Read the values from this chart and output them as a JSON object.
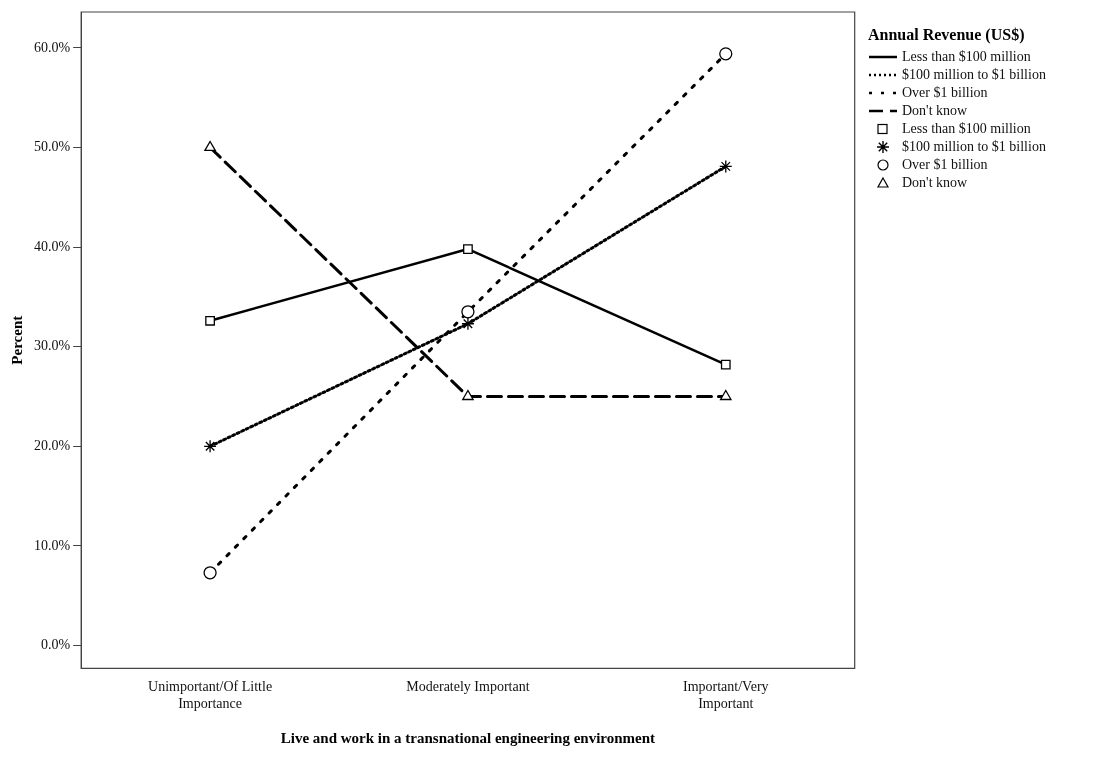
{
  "chart_data": {
    "type": "line",
    "xlabel": "Live and work in a transnational engineering environment",
    "ylabel": "Percent",
    "legend_title": "Annual Revenue (US$)",
    "legend": "right",
    "grid": false,
    "categories": [
      "Unimportant/Of Little Importance",
      "Moderately Important",
      "Important/Very Important"
    ],
    "ylim": [
      -2.3,
      63.6
    ],
    "yticks": [
      {
        "value": 0,
        "label": "0.0%"
      },
      {
        "value": 10,
        "label": "10.0%"
      },
      {
        "value": 20,
        "label": "20.0%"
      },
      {
        "value": 30,
        "label": "30.0%"
      },
      {
        "value": 40,
        "label": "40.0%"
      },
      {
        "value": 50,
        "label": "50.0%"
      },
      {
        "value": 60,
        "label": "60.0%"
      }
    ],
    "series": [
      {
        "name": "Less than $100 million",
        "color": "#000000",
        "marker": "square",
        "line_style": "solid",
        "values": [
          32.6,
          39.8,
          28.2
        ]
      },
      {
        "name": "$100 million to $1 billion",
        "color": "#000000",
        "marker": "cross",
        "line_style": "dotted",
        "values": [
          20.0,
          32.3,
          48.1
        ]
      },
      {
        "name": "Over $1 billion",
        "color": "#000000",
        "marker": "circle",
        "line_style": "sparse-dotted",
        "values": [
          7.3,
          33.5,
          59.4
        ]
      },
      {
        "name": "Don't know",
        "color": "#000000",
        "marker": "triangle",
        "line_style": "dashed",
        "values": [
          50.0,
          25.0,
          25.0
        ]
      }
    ]
  }
}
